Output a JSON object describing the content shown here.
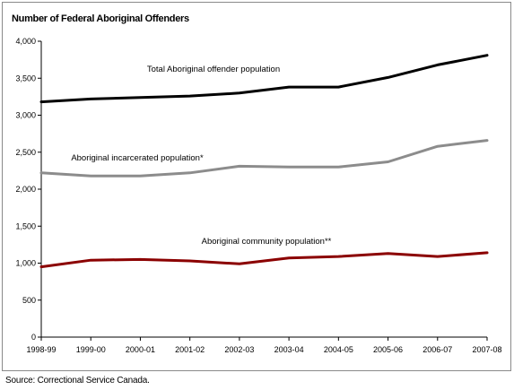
{
  "chart_data": {
    "type": "line",
    "title": "Number of Federal Aboriginal Offenders",
    "xlabel": "",
    "ylabel": "",
    "ylim": [
      0,
      4000
    ],
    "yticks": [
      0,
      500,
      1000,
      1500,
      2000,
      2500,
      3000,
      3500,
      4000
    ],
    "ytick_labels": [
      "0",
      "500",
      "1,000",
      "1,500",
      "2,000",
      "2,500",
      "3,000",
      "3,500",
      "4,000"
    ],
    "categories": [
      "1998-99",
      "1999-00",
      "2000-01",
      "2001-02",
      "2002-03",
      "2003-04",
      "2004-05",
      "2005-06",
      "2006-07",
      "2007-08"
    ],
    "grid": false,
    "legend": "inline labels",
    "series": [
      {
        "name": "Total Aboriginal offender population",
        "color": "#000000",
        "values": [
          3180,
          3220,
          3240,
          3260,
          3300,
          3380,
          3380,
          3510,
          3680,
          3810
        ]
      },
      {
        "name": "Aboriginal incarcerated population*",
        "color": "#8c8c8c",
        "values": [
          2220,
          2180,
          2180,
          2220,
          2310,
          2300,
          2300,
          2370,
          2580,
          2660
        ]
      },
      {
        "name": "Aboriginal community population**",
        "color": "#8b0000",
        "values": [
          950,
          1040,
          1050,
          1030,
          990,
          1070,
          1090,
          1130,
          1090,
          1140
        ]
      }
    ]
  },
  "source": "Source:  Correctional Service Canada."
}
